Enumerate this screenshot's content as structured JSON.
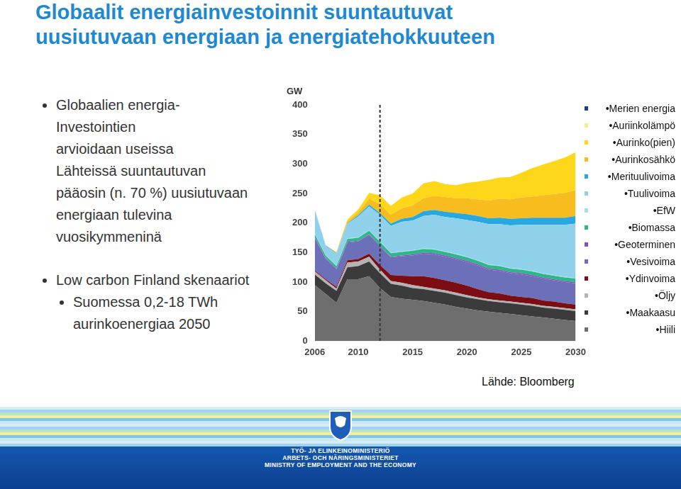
{
  "page": {
    "title": [
      "Globaalit energiainvestoinnit suuntautuvat",
      "uusiutuvaan energiaan ja energiatehokkuuteen"
    ],
    "bullets": [
      {
        "lines": [
          "Globaalien energia-",
          "Investointien",
          "arvioidaan useissa",
          "Lähteissä suuntautuvan",
          "pääosin (n. 70 %) uusiutuvaan",
          "energiaan tulevina",
          "vuosikymmeninä"
        ],
        "sub": []
      },
      {
        "lines": [
          "Low carbon Finland skenaariot"
        ],
        "sub": [
          {
            "lines": [
              "Suomessa 0,2-18 TWh",
              "aurinkoenergiaa 2050"
            ]
          }
        ]
      }
    ],
    "source": "Lähde: Bloomberg",
    "footer": [
      "TYÖ- JA ELINKEINOMINISTERIÖ",
      "ARBETS- OCH NÄRINGSMINISTERIET",
      "MINISTRY OF EMPLOYMENT AND THE ECONOMY"
    ]
  },
  "chart_data": {
    "type": "area",
    "stacked": true,
    "y_label": "GW",
    "x": [
      2006,
      2007,
      2008,
      2009,
      2010,
      2011,
      2012,
      2013,
      2014,
      2015,
      2016,
      2017,
      2018,
      2019,
      2020,
      2021,
      2022,
      2023,
      2024,
      2025,
      2026,
      2027,
      2028,
      2029,
      2030
    ],
    "xlim": [
      2006,
      2030
    ],
    "xticks": [
      2006,
      2010,
      2015,
      2020,
      2025,
      2030
    ],
    "ylim": [
      0,
      400
    ],
    "yticks": [
      0,
      50,
      100,
      150,
      200,
      250,
      300,
      350,
      400
    ],
    "grid": false,
    "legend": "right",
    "vertical_lines": [
      {
        "x": 2012,
        "line_style": "dashed"
      }
    ],
    "series": [
      {
        "name": "Hiili",
        "color": "#6e6e6e",
        "values": [
          95,
          80,
          65,
          105,
          105,
          110,
          90,
          75,
          72,
          70,
          68,
          65,
          62,
          58,
          55,
          52,
          50,
          48,
          46,
          44,
          42,
          40,
          38,
          36,
          34
        ]
      },
      {
        "name": "Maakaasu",
        "color": "#3b3b3b",
        "values": [
          18,
          18,
          20,
          20,
          22,
          25,
          25,
          22,
          22,
          20,
          20,
          20,
          20,
          20,
          19,
          19,
          18,
          18,
          18,
          18,
          18,
          17,
          17,
          17,
          17
        ]
      },
      {
        "name": "Öljy",
        "color": "#b3b3b3",
        "values": [
          5,
          5,
          4,
          8,
          8,
          8,
          6,
          5,
          5,
          5,
          4,
          4,
          4,
          4,
          4,
          3,
          3,
          3,
          3,
          3,
          3,
          3,
          3,
          3,
          3
        ]
      },
      {
        "name": "Ydinvoima",
        "color": "#7b0d14",
        "values": [
          2,
          2,
          3,
          4,
          4,
          5,
          8,
          10,
          12,
          15,
          18,
          18,
          17,
          17,
          16,
          14,
          12,
          12,
          10,
          10,
          10,
          9,
          9,
          8,
          8
        ]
      },
      {
        "name": "Vesivoima",
        "color": "#6b70b8",
        "values": [
          55,
          35,
          30,
          30,
          30,
          32,
          32,
          30,
          33,
          35,
          38,
          40,
          40,
          40,
          40,
          40,
          38,
          38,
          38,
          38,
          37,
          37,
          36,
          36,
          36
        ]
      },
      {
        "name": "Geoterminen",
        "color": "#8b4fb3",
        "values": [
          1,
          1,
          1,
          1,
          1,
          1,
          1,
          1,
          1,
          2,
          2,
          2,
          2,
          2,
          2,
          2,
          2,
          2,
          2,
          2,
          2,
          2,
          2,
          2,
          2
        ]
      },
      {
        "name": "Biomassa",
        "color": "#2bb88a",
        "values": [
          5,
          4,
          4,
          5,
          5,
          6,
          6,
          6,
          6,
          6,
          6,
          6,
          6,
          6,
          6,
          6,
          6,
          6,
          6,
          6,
          6,
          6,
          6,
          6,
          6
        ]
      },
      {
        "name": "EfW",
        "color": "#a9dbe9",
        "values": [
          1,
          1,
          1,
          1,
          1,
          1,
          1,
          1,
          1,
          1,
          1,
          1,
          1,
          1,
          1,
          1,
          1,
          1,
          1,
          1,
          1,
          1,
          1,
          1,
          1
        ]
      },
      {
        "name": "Tuulivoima",
        "color": "#8fd0ea",
        "values": [
          40,
          15,
          20,
          25,
          35,
          40,
          45,
          45,
          50,
          50,
          55,
          58,
          58,
          60,
          62,
          65,
          68,
          70,
          72,
          75,
          78,
          82,
          85,
          88,
          92
        ]
      },
      {
        "name": "Merituulivoima",
        "color": "#29a8e0",
        "values": [
          1,
          1,
          1,
          1,
          2,
          3,
          3,
          4,
          5,
          6,
          8,
          8,
          9,
          9,
          10,
          10,
          10,
          11,
          11,
          11,
          12,
          12,
          12,
          12,
          13
        ]
      },
      {
        "name": "Aurinkosähkö",
        "color": "#f7bd1e",
        "values": [
          0,
          0,
          1,
          3,
          5,
          10,
          15,
          15,
          18,
          20,
          22,
          24,
          25,
          25,
          27,
          28,
          30,
          32,
          33,
          35,
          36,
          38,
          40,
          42,
          44
        ]
      },
      {
        "name": "Aurinko(pien)",
        "color": "#ffd71a",
        "values": [
          0,
          0,
          1,
          3,
          5,
          10,
          15,
          15,
          18,
          20,
          25,
          25,
          22,
          22,
          26,
          30,
          35,
          36,
          38,
          42,
          48,
          52,
          56,
          60,
          64
        ]
      },
      {
        "name": "Auriinkolämpö",
        "color": "#f4ee84",
        "values": [
          0,
          0,
          0,
          0,
          0,
          0,
          0,
          0,
          0,
          0,
          0,
          0,
          0,
          0,
          0,
          0,
          0,
          0,
          0,
          0,
          0,
          0,
          0,
          0,
          0
        ]
      },
      {
        "name": "Merien energia",
        "color": "#1f3c8a",
        "values": [
          0,
          0,
          0,
          0,
          0,
          0,
          0,
          0,
          0,
          0,
          0,
          0,
          0,
          0,
          0,
          0,
          0,
          0,
          0,
          0,
          0,
          0,
          0,
          0,
          0
        ]
      }
    ]
  }
}
